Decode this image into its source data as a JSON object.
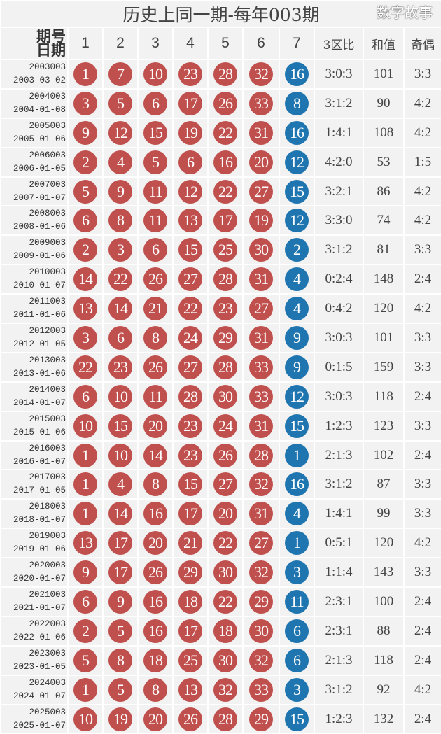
{
  "title": "历史上同一期-每年003期",
  "header": {
    "issue_label": "期号",
    "date_label": "日期",
    "cols": [
      "1",
      "2",
      "3",
      "4",
      "5",
      "6",
      "7"
    ],
    "zone": "3区比",
    "sum": "和值",
    "odd_even": "奇偶"
  },
  "colors": {
    "red": "#c0504d",
    "blue": "#1f75b0"
  },
  "rows": [
    {
      "issue": "2003003",
      "date": "2003-03-02",
      "red": [
        "1",
        "7",
        "10",
        "23",
        "28",
        "32"
      ],
      "blue": "16",
      "zone": "3:0:3",
      "sum": "101",
      "oe": "3:3"
    },
    {
      "issue": "2004003",
      "date": "2004-01-08",
      "red": [
        "3",
        "5",
        "6",
        "17",
        "26",
        "33"
      ],
      "blue": "8",
      "zone": "3:1:2",
      "sum": "90",
      "oe": "4:2"
    },
    {
      "issue": "2005003",
      "date": "2005-01-06",
      "red": [
        "9",
        "12",
        "15",
        "19",
        "22",
        "31"
      ],
      "blue": "16",
      "zone": "1:4:1",
      "sum": "108",
      "oe": "4:2"
    },
    {
      "issue": "2006003",
      "date": "2006-01-05",
      "red": [
        "2",
        "4",
        "5",
        "6",
        "16",
        "20"
      ],
      "blue": "12",
      "zone": "4:2:0",
      "sum": "53",
      "oe": "1:5"
    },
    {
      "issue": "2007003",
      "date": "2007-01-07",
      "red": [
        "5",
        "9",
        "11",
        "12",
        "22",
        "27"
      ],
      "blue": "15",
      "zone": "3:2:1",
      "sum": "86",
      "oe": "4:2"
    },
    {
      "issue": "2008003",
      "date": "2008-01-06",
      "red": [
        "6",
        "8",
        "11",
        "13",
        "17",
        "19"
      ],
      "blue": "12",
      "zone": "3:3:0",
      "sum": "74",
      "oe": "4:2"
    },
    {
      "issue": "2009003",
      "date": "2009-01-06",
      "red": [
        "2",
        "3",
        "6",
        "15",
        "25",
        "30"
      ],
      "blue": "2",
      "zone": "3:1:2",
      "sum": "81",
      "oe": "3:3"
    },
    {
      "issue": "2010003",
      "date": "2010-01-07",
      "red": [
        "14",
        "22",
        "26",
        "27",
        "28",
        "31"
      ],
      "blue": "4",
      "zone": "0:2:4",
      "sum": "148",
      "oe": "2:4"
    },
    {
      "issue": "2011003",
      "date": "2011-01-06",
      "red": [
        "13",
        "14",
        "21",
        "22",
        "23",
        "27"
      ],
      "blue": "4",
      "zone": "0:4:2",
      "sum": "120",
      "oe": "4:2"
    },
    {
      "issue": "2012003",
      "date": "2012-01-05",
      "red": [
        "3",
        "6",
        "8",
        "24",
        "29",
        "31"
      ],
      "blue": "9",
      "zone": "3:0:3",
      "sum": "101",
      "oe": "3:3"
    },
    {
      "issue": "2013003",
      "date": "2013-01-06",
      "red": [
        "22",
        "23",
        "26",
        "27",
        "28",
        "33"
      ],
      "blue": "9",
      "zone": "0:1:5",
      "sum": "159",
      "oe": "3:3"
    },
    {
      "issue": "2014003",
      "date": "2014-01-07",
      "red": [
        "6",
        "10",
        "11",
        "28",
        "30",
        "33"
      ],
      "blue": "12",
      "zone": "3:0:3",
      "sum": "118",
      "oe": "2:4"
    },
    {
      "issue": "2015003",
      "date": "2015-01-06",
      "red": [
        "10",
        "15",
        "20",
        "23",
        "24",
        "31"
      ],
      "blue": "15",
      "zone": "1:2:3",
      "sum": "123",
      "oe": "3:3"
    },
    {
      "issue": "2016003",
      "date": "2016-01-07",
      "red": [
        "1",
        "10",
        "14",
        "23",
        "26",
        "28"
      ],
      "blue": "1",
      "zone": "2:1:3",
      "sum": "102",
      "oe": "2:4"
    },
    {
      "issue": "2017003",
      "date": "2017-01-05",
      "red": [
        "1",
        "4",
        "8",
        "15",
        "27",
        "32"
      ],
      "blue": "16",
      "zone": "3:1:2",
      "sum": "87",
      "oe": "3:3"
    },
    {
      "issue": "2018003",
      "date": "2018-01-07",
      "red": [
        "1",
        "14",
        "16",
        "17",
        "20",
        "31"
      ],
      "blue": "4",
      "zone": "1:4:1",
      "sum": "99",
      "oe": "3:3"
    },
    {
      "issue": "2019003",
      "date": "2019-01-06",
      "red": [
        "13",
        "17",
        "20",
        "21",
        "22",
        "27"
      ],
      "blue": "1",
      "zone": "0:5:1",
      "sum": "120",
      "oe": "4:2"
    },
    {
      "issue": "2020003",
      "date": "2020-01-07",
      "red": [
        "9",
        "17",
        "26",
        "29",
        "30",
        "32"
      ],
      "blue": "3",
      "zone": "1:1:4",
      "sum": "143",
      "oe": "3:3"
    },
    {
      "issue": "2021003",
      "date": "2021-01-07",
      "red": [
        "6",
        "9",
        "16",
        "18",
        "22",
        "29"
      ],
      "blue": "11",
      "zone": "2:3:1",
      "sum": "100",
      "oe": "2:4"
    },
    {
      "issue": "2022003",
      "date": "2022-01-06",
      "red": [
        "2",
        "5",
        "16",
        "17",
        "18",
        "30"
      ],
      "blue": "6",
      "zone": "2:3:1",
      "sum": "88",
      "oe": "2:4"
    },
    {
      "issue": "2023003",
      "date": "2023-01-05",
      "red": [
        "5",
        "8",
        "18",
        "25",
        "30",
        "32"
      ],
      "blue": "6",
      "zone": "2:1:3",
      "sum": "118",
      "oe": "2:4"
    },
    {
      "issue": "2024003",
      "date": "2024-01-07",
      "red": [
        "1",
        "5",
        "8",
        "13",
        "32",
        "33"
      ],
      "blue": "3",
      "zone": "3:1:2",
      "sum": "92",
      "oe": "4:2"
    },
    {
      "issue": "2025003",
      "date": "2025-01-07",
      "red": [
        "10",
        "19",
        "20",
        "26",
        "28",
        "29"
      ],
      "blue": "15",
      "zone": "1:2:3",
      "sum": "132",
      "oe": "2:4"
    }
  ],
  "watermark": "数字故事"
}
